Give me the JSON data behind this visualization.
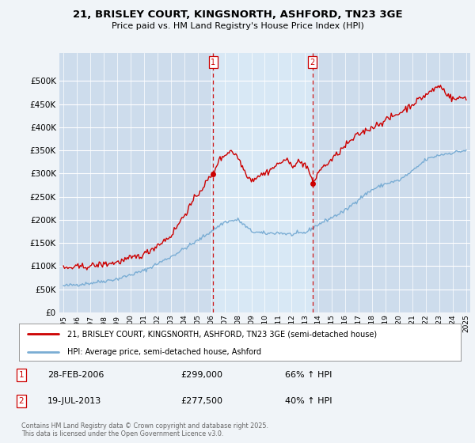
{
  "title": "21, BRISLEY COURT, KINGSNORTH, ASHFORD, TN23 3GE",
  "subtitle": "Price paid vs. HM Land Registry's House Price Index (HPI)",
  "background_color": "#f0f4f8",
  "plot_bg_color": "#cddcec",
  "highlight_color": "#d8e8f5",
  "legend_label_red": "21, BRISLEY COURT, KINGSNORTH, ASHFORD, TN23 3GE (semi-detached house)",
  "legend_label_blue": "HPI: Average price, semi-detached house, Ashford",
  "annotation1_date": "28-FEB-2006",
  "annotation1_price": "£299,000",
  "annotation1_pct": "66% ↑ HPI",
  "annotation2_date": "19-JUL-2013",
  "annotation2_price": "£277,500",
  "annotation2_pct": "40% ↑ HPI",
  "footer": "Contains HM Land Registry data © Crown copyright and database right 2025.\nThis data is licensed under the Open Government Licence v3.0.",
  "ylim": [
    0,
    560000
  ],
  "yticks": [
    0,
    50000,
    100000,
    150000,
    200000,
    250000,
    300000,
    350000,
    400000,
    450000,
    500000
  ],
  "red_color": "#cc0000",
  "blue_color": "#7aadd4",
  "vline_color": "#cc0000",
  "marker1_x": 2006.15,
  "marker1_y": 299000,
  "marker2_x": 2013.55,
  "marker2_y": 277500,
  "xlim_left": 1994.7,
  "xlim_right": 2025.3
}
